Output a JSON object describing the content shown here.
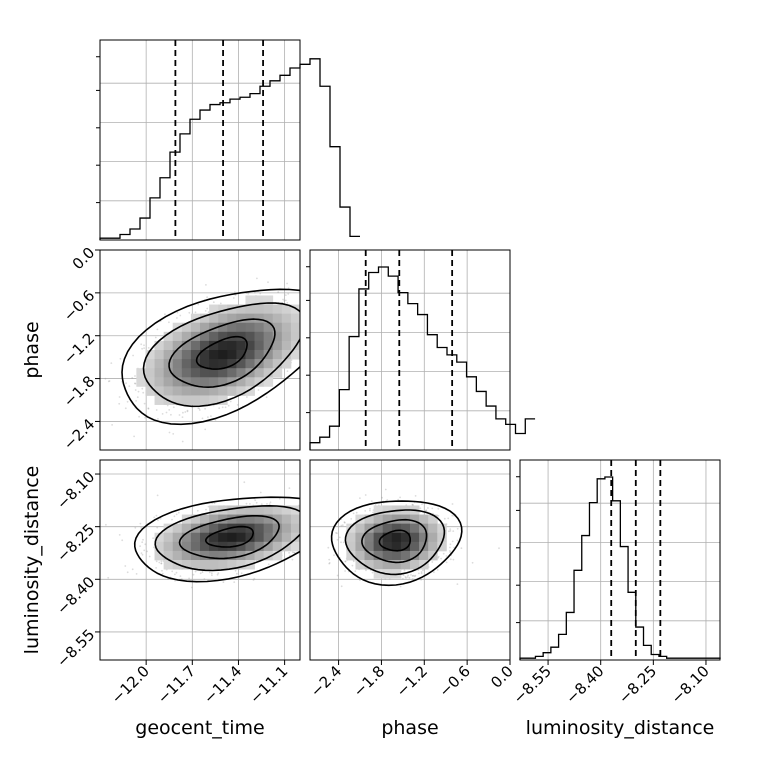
{
  "chart_data": {
    "type": "corner",
    "parameters": [
      "geocent_time",
      "phase",
      "luminosity_distance"
    ],
    "ranges": {
      "geocent_time": [
        -12.3,
        -11.0
      ],
      "phase": [
        -2.8,
        0.0
      ],
      "luminosity_distance": [
        -8.63,
        -8.06
      ]
    },
    "ticks": {
      "geocent_time": [
        "-12.0",
        "-11.7",
        "-11.4",
        "-11.1"
      ],
      "phase": [
        "-2.4",
        "-1.8",
        "-1.2",
        "-0.6",
        "0.0"
      ],
      "luminosity_distance": [
        "-8.55",
        "-8.40",
        "-8.25",
        "-8.10"
      ]
    },
    "grid": true,
    "marginals": {
      "geocent_time": {
        "edges_start": -12.3,
        "bin_width": 0.065,
        "counts": [
          0.01,
          0.01,
          0.03,
          0.06,
          0.12,
          0.23,
          0.34,
          0.48,
          0.58,
          0.66,
          0.71,
          0.74,
          0.75,
          0.77,
          0.78,
          0.8,
          0.84,
          0.87,
          0.9,
          0.94,
          0.96,
          0.99,
          0.84,
          0.51,
          0.18,
          0.02
        ],
        "quantiles": [
          -11.81,
          -11.5,
          -11.24
        ]
      },
      "phase": {
        "edges_start": -2.8,
        "bin_width": 0.137,
        "counts": [
          0.04,
          0.07,
          0.13,
          0.33,
          0.62,
          0.88,
          0.97,
          1.0,
          0.95,
          0.86,
          0.8,
          0.74,
          0.63,
          0.56,
          0.52,
          0.48,
          0.4,
          0.32,
          0.24,
          0.17,
          0.14,
          0.09,
          0.17
        ],
        "quantiles": [
          -2.02,
          -1.55,
          -0.81
        ]
      },
      "luminosity_distance": {
        "edges_start": -8.63,
        "bin_width": 0.022,
        "counts": [
          0.01,
          0.01,
          0.02,
          0.04,
          0.07,
          0.14,
          0.26,
          0.49,
          0.68,
          0.86,
          0.99,
          1.0,
          0.87,
          0.62,
          0.37,
          0.18,
          0.08,
          0.03,
          0.02,
          0.01,
          0.01,
          0.01,
          0.01,
          0.01,
          0.01,
          0.01
        ],
        "quantiles": [
          -8.37,
          -8.3,
          -8.23
        ]
      }
    },
    "pair_densities": [
      {
        "x": "geocent_time",
        "y": "phase",
        "center": [
          -11.5,
          -1.45
        ],
        "spread": [
          0.34,
          0.47
        ],
        "rho": 0.45
      },
      {
        "x": "geocent_time",
        "y": "luminosity_distance",
        "center": [
          -11.45,
          -8.28
        ],
        "spread": [
          0.32,
          0.06
        ],
        "rho": 0.35
      },
      {
        "x": "phase",
        "y": "luminosity_distance",
        "center": [
          -1.6,
          -8.29
        ],
        "spread": [
          0.45,
          0.06
        ],
        "rho": 0.1
      }
    ]
  }
}
